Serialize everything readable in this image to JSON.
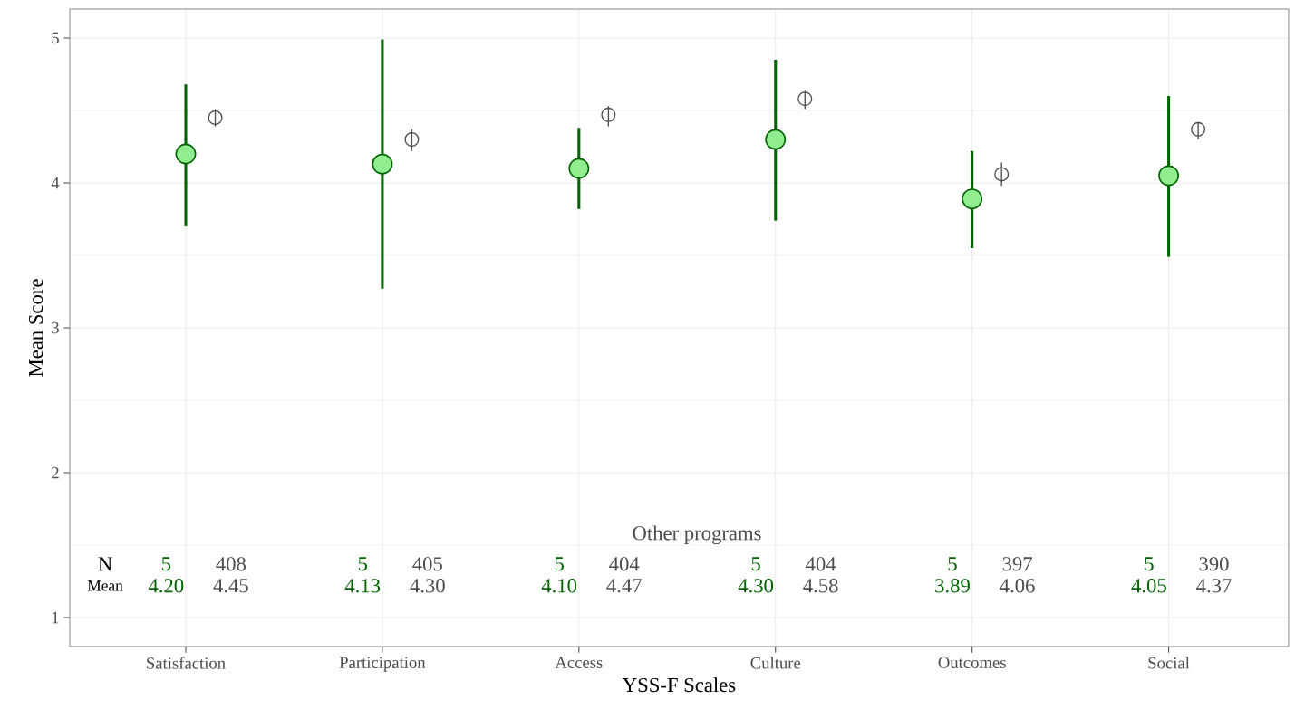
{
  "chart_data": {
    "type": "scatter",
    "xlabel": "YSS-F Scales",
    "ylabel": "Mean Score",
    "categories": [
      "Satisfaction",
      "Participation",
      "Access",
      "Culture",
      "Outcomes",
      "Social"
    ],
    "series": [
      {
        "color": "#90ee90",
        "marker": "circle",
        "values": [
          4.2,
          4.13,
          4.1,
          4.3,
          3.89,
          4.05
        ],
        "errors": [
          [
            3.7,
            4.68
          ],
          [
            3.27,
            4.99
          ],
          [
            3.82,
            4.38
          ],
          [
            3.74,
            4.85
          ],
          [
            3.55,
            4.22
          ],
          [
            3.49,
            4.6
          ]
        ]
      },
      {
        "name": "Other programs",
        "color": "#4d4d4d",
        "marker": "circle",
        "values": [
          4.45,
          4.3,
          4.47,
          4.58,
          4.06,
          4.37
        ],
        "errors": [
          [
            4.39,
            4.51
          ],
          [
            4.22,
            4.37
          ],
          [
            4.39,
            4.53
          ],
          [
            4.51,
            4.64
          ],
          [
            3.98,
            4.14
          ],
          [
            4.3,
            4.42
          ]
        ]
      }
    ],
    "ylim": [
      0.8,
      5.2
    ],
    "yticks": [
      1,
      2,
      3,
      4,
      5
    ],
    "grid": true,
    "legend": false,
    "annotations": [
      "N",
      "Mean",
      "5",
      "408",
      "4.20",
      "4.45",
      "5",
      "405",
      "4.13",
      "4.30",
      "5",
      "404",
      "4.10",
      "4.47",
      "5",
      "404",
      "4.30",
      "4.58",
      "5",
      "397",
      "3.89",
      "4.06",
      "5",
      "390",
      "4.05",
      "4.37"
    ]
  }
}
